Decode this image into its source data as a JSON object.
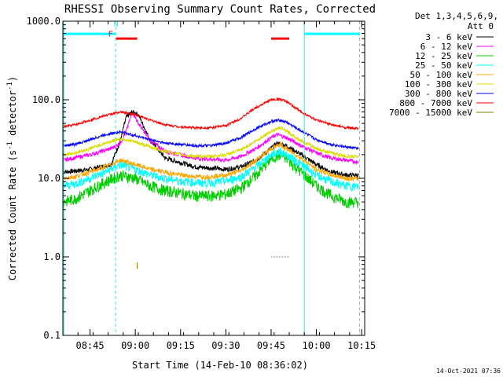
{
  "chart_data": {
    "type": "line",
    "title": "RHESSI Observing Summary Count Rates, Corrected",
    "xlabel": "Start Time (14-Feb-10 08:36:02)",
    "ylabel": "Corrected Count Rate (s",
    "ylabel_sup": "-1",
    "ylabel_mid": " detector",
    "ylabel_end": ")",
    "x_start_min": 516,
    "x_end_min": 616,
    "y_scale": "log",
    "ylim": [
      0.1,
      1000
    ],
    "y_ticks": [
      {
        "value": 0.1,
        "label": "0.1"
      },
      {
        "value": 1,
        "label": "1.0"
      },
      {
        "value": 10,
        "label": "10.0"
      },
      {
        "value": 100,
        "label": "100.0"
      },
      {
        "value": 1000,
        "label": "1000.0"
      }
    ],
    "x_ticks": [
      {
        "value": 525,
        "label": "08:45"
      },
      {
        "value": 540,
        "label": "09:00"
      },
      {
        "value": 555,
        "label": "09:15"
      },
      {
        "value": 570,
        "label": "09:30"
      },
      {
        "value": 585,
        "label": "09:45"
      },
      {
        "value": 600,
        "label": "10:00"
      },
      {
        "value": 615,
        "label": "10:15"
      }
    ],
    "legend": {
      "position": "top-right",
      "header1": "Det 1,3,4,5,6,9,",
      "header2": "Att 0"
    },
    "series": [
      {
        "name": "3 - 6 keV",
        "color": "#000000",
        "x": [
          516,
          525,
          532,
          535,
          537,
          539,
          541,
          545,
          550,
          560,
          570,
          575,
          580,
          585,
          587,
          590,
          595,
          600,
          605,
          610,
          614
        ],
        "y": [
          12,
          13,
          15,
          30,
          60,
          70,
          65,
          30,
          18,
          14,
          13,
          14,
          17,
          24,
          28,
          26,
          20,
          15,
          12,
          11,
          11
        ]
      },
      {
        "name": "6 - 12 keV",
        "color": "#ff00ff",
        "x": [
          516,
          525,
          532,
          535,
          537,
          539,
          541,
          545,
          550,
          560,
          570,
          575,
          580,
          585,
          587,
          590,
          595,
          600,
          605,
          610,
          614
        ],
        "y": [
          17,
          20,
          24,
          28,
          40,
          70,
          50,
          30,
          22,
          18,
          17,
          19,
          24,
          33,
          36,
          33,
          26,
          21,
          18,
          17,
          16
        ]
      },
      {
        "name": "12 - 25 keV",
        "color": "#00cc00",
        "x": [
          516,
          520,
          525,
          530,
          535,
          540,
          545,
          550,
          555,
          560,
          565,
          570,
          575,
          580,
          585,
          588,
          590,
          595,
          600,
          605,
          610,
          614
        ],
        "y": [
          5,
          5.5,
          7,
          9,
          11,
          10,
          8,
          7,
          6.5,
          6,
          6,
          6.3,
          7.5,
          11,
          18,
          20,
          18,
          12,
          8,
          6,
          5,
          5
        ]
      },
      {
        "name": "25 - 50 keV",
        "color": "#00ffff",
        "x": [
          516,
          520,
          525,
          530,
          535,
          540,
          545,
          550,
          555,
          560,
          565,
          570,
          575,
          580,
          585,
          588,
          590,
          595,
          600,
          605,
          610,
          614
        ],
        "y": [
          8,
          8.5,
          10,
          12,
          15,
          13,
          11,
          10,
          9.2,
          8.8,
          8.8,
          9.2,
          10.5,
          14,
          20,
          22,
          20,
          15,
          11,
          9,
          8,
          7.8
        ]
      },
      {
        "name": "50 - 100 keV",
        "color": "#ffa500",
        "x": [
          516,
          520,
          525,
          530,
          535,
          540,
          545,
          550,
          555,
          560,
          565,
          570,
          575,
          580,
          585,
          588,
          590,
          595,
          600,
          605,
          610,
          614
        ],
        "y": [
          10,
          10.5,
          12,
          14,
          17,
          15,
          13,
          12,
          11,
          10.5,
          10.5,
          11,
          12.5,
          17,
          24,
          27,
          24,
          18,
          13,
          11,
          10,
          9.8
        ]
      },
      {
        "name": "100 - 300 keV",
        "color": "#dcdc00",
        "x": [
          516,
          520,
          525,
          530,
          535,
          540,
          545,
          550,
          555,
          560,
          565,
          570,
          575,
          580,
          585,
          588,
          590,
          595,
          600,
          605,
          610,
          614
        ],
        "y": [
          20,
          21,
          24,
          28,
          32,
          29,
          25,
          22,
          20,
          19,
          19,
          20,
          23,
          30,
          40,
          44,
          40,
          30,
          24,
          21,
          19,
          19
        ]
      },
      {
        "name": "300 - 800 keV",
        "color": "#0000ff",
        "x": [
          516,
          520,
          525,
          530,
          535,
          540,
          545,
          550,
          555,
          560,
          565,
          570,
          575,
          580,
          585,
          588,
          590,
          595,
          600,
          605,
          610,
          614
        ],
        "y": [
          26,
          27,
          31,
          36,
          39,
          35,
          31,
          28,
          27,
          26,
          26,
          28,
          33,
          43,
          53,
          55,
          52,
          40,
          31,
          27,
          25,
          24
        ]
      },
      {
        "name": "800 - 7000 keV",
        "color": "#ff0000",
        "x": [
          516,
          520,
          525,
          530,
          535,
          540,
          545,
          550,
          555,
          560,
          565,
          570,
          575,
          580,
          585,
          588,
          590,
          595,
          600,
          605,
          610,
          614
        ],
        "y": [
          45,
          48,
          55,
          63,
          70,
          65,
          55,
          48,
          45,
          44,
          44,
          47,
          58,
          80,
          100,
          102,
          95,
          70,
          55,
          48,
          44,
          43
        ]
      },
      {
        "name": "7000 - 15000 keV",
        "color": "#808000",
        "x": [],
        "y": []
      }
    ],
    "annotations": [
      {
        "text": "N",
        "color": "#00ffff",
        "x": 533.6,
        "y": 860
      },
      {
        "text": "F",
        "color": "#ff0000",
        "x": 531.8,
        "y": 640
      }
    ],
    "bars": [
      {
        "color": "#00ffff",
        "x0": 516.2,
        "x1": 533.5,
        "y": 690
      },
      {
        "color": "#00ffff",
        "x0": 596,
        "x1": 614.3,
        "y": 690
      },
      {
        "color": "#ff0000",
        "x0": 533.5,
        "x1": 540.6,
        "y": 600
      },
      {
        "color": "#ff0000",
        "x0": 585,
        "x1": 591,
        "y": 600
      }
    ],
    "vlines": [
      {
        "x": 516.3,
        "color": "#00ffff",
        "dashed": false
      },
      {
        "x": 533.5,
        "color": "#00ffff",
        "dashed": true
      },
      {
        "x": 596,
        "color": "#00ffff",
        "dashed": false
      },
      {
        "x": 614.3,
        "color": "#00ffff",
        "dashed": true
      }
    ],
    "marks": [
      {
        "color": "#808000",
        "x0": 585,
        "x1": 591,
        "y": 1.0,
        "kind": "dots"
      },
      {
        "color": "#808000",
        "x0": 540.6,
        "x1": 540.6,
        "y0": 0.7,
        "y1": 0.85,
        "kind": "vbar"
      }
    ],
    "timestamp": "14-Oct-2021 07:36"
  }
}
